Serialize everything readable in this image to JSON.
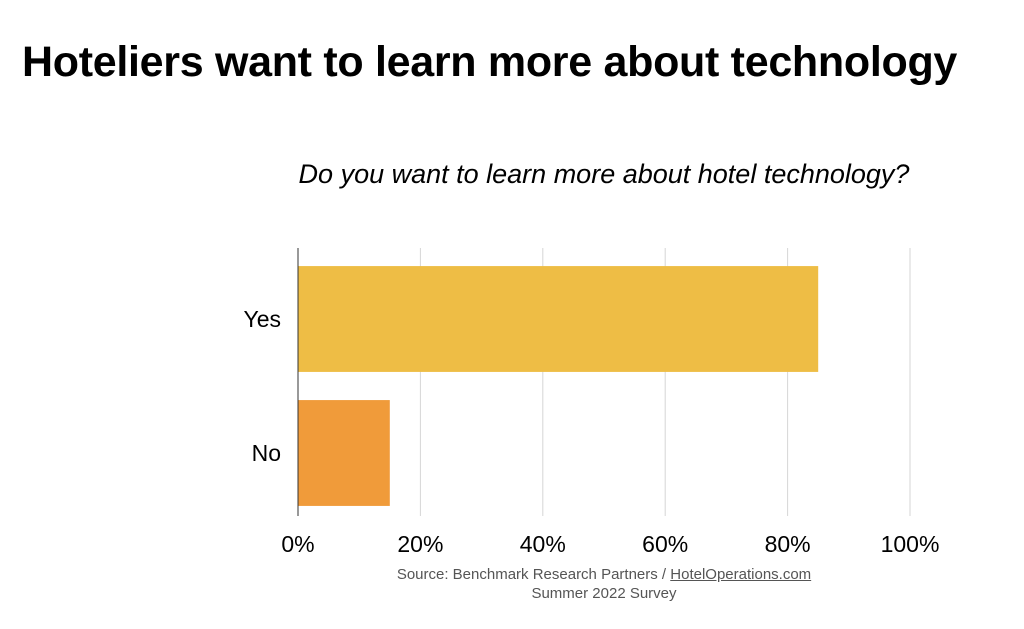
{
  "headline": "Hoteliers want to learn more about technology",
  "chart_data": {
    "type": "bar",
    "orientation": "horizontal",
    "title": "Do you want to learn more about hotel technology?",
    "categories": [
      "Yes",
      "No"
    ],
    "values": [
      85,
      15
    ],
    "colors": [
      "#EEBD45",
      "#F09B3A"
    ],
    "xlim": [
      0,
      100
    ],
    "xticks": [
      "0%",
      "20%",
      "40%",
      "60%",
      "80%",
      "100%"
    ],
    "grid": true,
    "legend": "none"
  },
  "source": {
    "prefix": "Source: Benchmark Research Partners / ",
    "link": "HotelOperations.com",
    "line2": "Summer 2022 Survey"
  }
}
